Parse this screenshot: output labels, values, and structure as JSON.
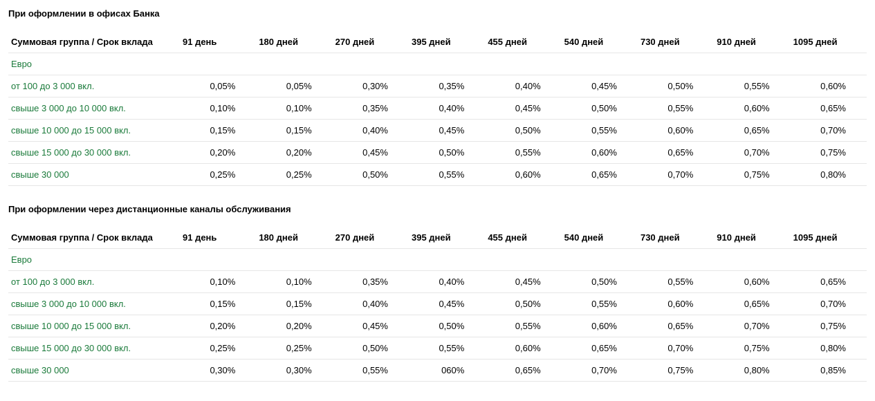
{
  "colors": {
    "text": "#000000",
    "link": "#1a7a3a",
    "border": "#e6e6e6",
    "background": "#ffffff"
  },
  "header_label": "Суммовая группа / Срок вклада",
  "periods": [
    "91 день",
    "180 дней",
    "270 дней",
    "395 дней",
    "455 дней",
    "540 дней",
    "730 дней",
    "910 дней",
    "1095 дней"
  ],
  "currency_label": "Евро",
  "sections": [
    {
      "title": "При оформлении в офисах Банка",
      "rows": [
        {
          "group": "от 100 до 3 000 вкл.",
          "rates": [
            "0,05%",
            "0,05%",
            "0,30%",
            "0,35%",
            "0,40%",
            "0,45%",
            "0,50%",
            "0,55%",
            "0,60%"
          ]
        },
        {
          "group": "свыше 3 000 до 10 000 вкл.",
          "rates": [
            "0,10%",
            "0,10%",
            "0,35%",
            "0,40%",
            "0,45%",
            "0,50%",
            "0,55%",
            "0,60%",
            "0,65%"
          ]
        },
        {
          "group": "свыше 10 000 до 15 000 вкл.",
          "rates": [
            "0,15%",
            "0,15%",
            "0,40%",
            "0,45%",
            "0,50%",
            "0,55%",
            "0,60%",
            "0,65%",
            "0,70%"
          ]
        },
        {
          "group": "свыше 15 000 до 30 000 вкл.",
          "rates": [
            "0,20%",
            "0,20%",
            "0,45%",
            "0,50%",
            "0,55%",
            "0,60%",
            "0,65%",
            "0,70%",
            "0,75%"
          ]
        },
        {
          "group": "свыше 30 000",
          "rates": [
            "0,25%",
            "0,25%",
            "0,50%",
            "0,55%",
            "0,60%",
            "0,65%",
            "0,70%",
            "0,75%",
            "0,80%"
          ]
        }
      ]
    },
    {
      "title": "При оформлении через дистанционные каналы обслуживания",
      "rows": [
        {
          "group": "от 100 до 3 000 вкл.",
          "rates": [
            "0,10%",
            "0,10%",
            "0,35%",
            "0,40%",
            "0,45%",
            "0,50%",
            "0,55%",
            "0,60%",
            "0,65%"
          ]
        },
        {
          "group": "свыше 3 000 до 10 000 вкл.",
          "rates": [
            "0,15%",
            "0,15%",
            "0,40%",
            "0,45%",
            "0,50%",
            "0,55%",
            "0,60%",
            "0,65%",
            "0,70%"
          ]
        },
        {
          "group": "свыше 10 000 до 15 000 вкл.",
          "rates": [
            "0,20%",
            "0,20%",
            "0,45%",
            "0,50%",
            "0,55%",
            "0,60%",
            "0,65%",
            "0,70%",
            "0,75%"
          ]
        },
        {
          "group": "свыше 15 000 до 30 000 вкл.",
          "rates": [
            "0,25%",
            "0,25%",
            "0,50%",
            "0,55%",
            "0,60%",
            "0,65%",
            "0,70%",
            "0,75%",
            "0,80%"
          ]
        },
        {
          "group": "свыше 30 000",
          "rates": [
            "0,30%",
            "0,30%",
            "0,55%",
            "060%",
            "0,65%",
            "0,70%",
            "0,75%",
            "0,80%",
            "0,85%"
          ]
        }
      ]
    }
  ]
}
